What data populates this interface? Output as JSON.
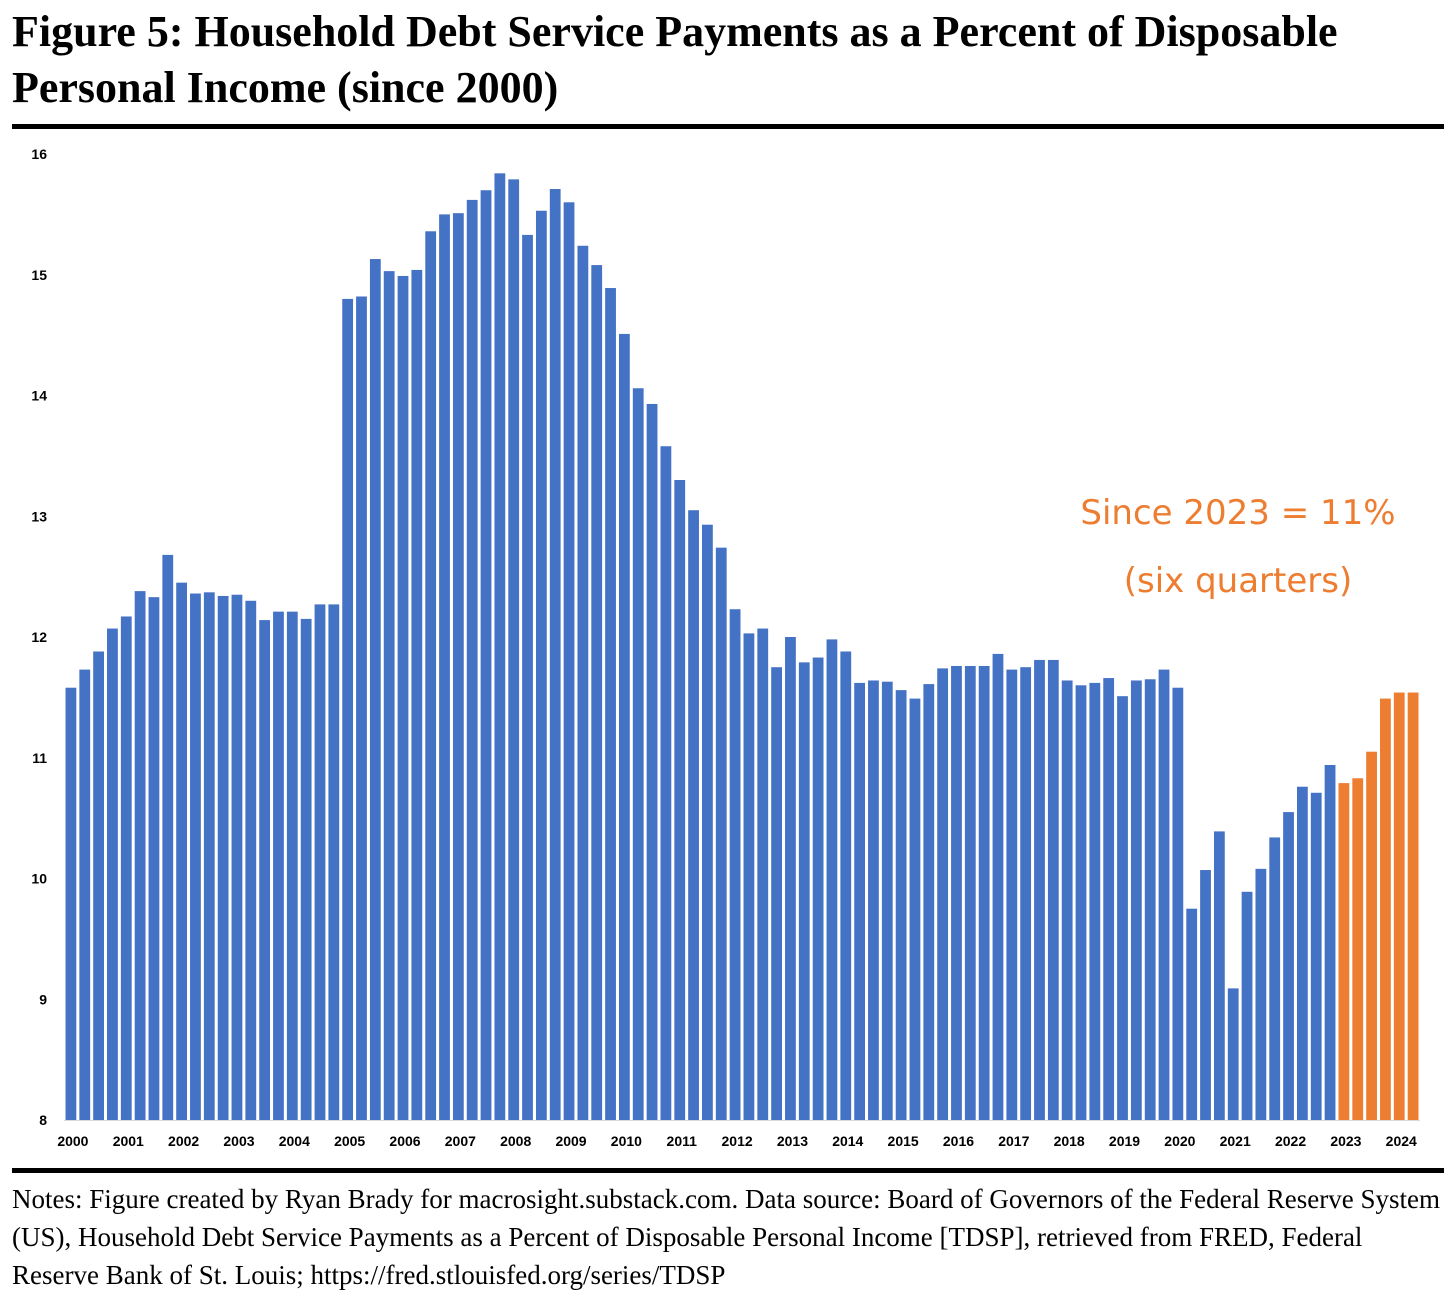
{
  "title": "Figure 5: Household Debt Service Payments as a Percent of Disposable Personal Income (since 2000)",
  "notes": "Notes: Figure created by Ryan Brady for macrosight.substack.com. Data source: Board of Governors of the Federal Reserve System (US), Household Debt Service Payments as a Percent of Disposable Personal Income [TDSP], retrieved from FRED, Federal Reserve Bank of St. Louis; https://fred.stlouisfed.org/series/TDSP",
  "annotation": {
    "line1": "Since 2023 = 11%",
    "line2": "(six quarters)"
  },
  "colors": {
    "base": "#4472c4",
    "highlight": "#ed7d31"
  },
  "chart_data": {
    "type": "bar",
    "title": "",
    "xlabel": "",
    "ylabel": "",
    "ylim": [
      8,
      16
    ],
    "yticks": [
      8,
      9,
      10,
      11,
      12,
      13,
      14,
      15,
      16
    ],
    "grid": false,
    "legend": "none",
    "year_labels": [
      "2000",
      "2001",
      "2002",
      "2003",
      "2004",
      "2005",
      "2006",
      "2007",
      "2008",
      "2009",
      "2010",
      "2011",
      "2012",
      "2013",
      "2014",
      "2015",
      "2016",
      "2017",
      "2018",
      "2019",
      "2020",
      "2021",
      "2022",
      "2023",
      "2024"
    ],
    "categories": [
      "2000Q1",
      "2000Q2",
      "2000Q3",
      "2000Q4",
      "2001Q1",
      "2001Q2",
      "2001Q3",
      "2001Q4",
      "2002Q1",
      "2002Q2",
      "2002Q3",
      "2002Q4",
      "2003Q1",
      "2003Q2",
      "2003Q3",
      "2003Q4",
      "2004Q1",
      "2004Q2",
      "2004Q3",
      "2004Q4",
      "2005Q1",
      "2005Q2",
      "2005Q3",
      "2005Q4",
      "2006Q1",
      "2006Q2",
      "2006Q3",
      "2006Q4",
      "2007Q1",
      "2007Q2",
      "2007Q3",
      "2007Q4",
      "2008Q1",
      "2008Q2",
      "2008Q3",
      "2008Q4",
      "2009Q1",
      "2009Q2",
      "2009Q3",
      "2009Q4",
      "2010Q1",
      "2010Q2",
      "2010Q3",
      "2010Q4",
      "2011Q1",
      "2011Q2",
      "2011Q3",
      "2011Q4",
      "2012Q1",
      "2012Q2",
      "2012Q3",
      "2012Q4",
      "2013Q1",
      "2013Q2",
      "2013Q3",
      "2013Q4",
      "2014Q1",
      "2014Q2",
      "2014Q3",
      "2014Q4",
      "2015Q1",
      "2015Q2",
      "2015Q3",
      "2015Q4",
      "2016Q1",
      "2016Q2",
      "2016Q3",
      "2016Q4",
      "2017Q1",
      "2017Q2",
      "2017Q3",
      "2017Q4",
      "2018Q1",
      "2018Q2",
      "2018Q3",
      "2018Q4",
      "2019Q1",
      "2019Q2",
      "2019Q3",
      "2019Q4",
      "2020Q1",
      "2020Q2",
      "2020Q3",
      "2020Q4",
      "2021Q1",
      "2021Q2",
      "2021Q3",
      "2021Q4",
      "2022Q1",
      "2022Q2",
      "2022Q3",
      "2022Q4",
      "2023Q1",
      "2023Q2",
      "2023Q3",
      "2023Q4",
      "2024Q1",
      "2024Q2"
    ],
    "values": [
      11.58,
      11.73,
      11.88,
      12.07,
      12.17,
      12.38,
      12.33,
      12.68,
      12.45,
      12.36,
      12.37,
      12.34,
      12.35,
      12.3,
      12.14,
      12.21,
      12.21,
      12.15,
      12.27,
      12.27,
      14.8,
      14.82,
      15.13,
      15.03,
      14.99,
      15.04,
      15.36,
      15.5,
      15.51,
      15.62,
      15.7,
      15.84,
      15.79,
      15.33,
      15.53,
      15.71,
      15.6,
      15.24,
      15.08,
      14.89,
      14.51,
      14.06,
      13.93,
      13.58,
      13.3,
      13.05,
      12.93,
      12.74,
      12.23,
      12.03,
      12.07,
      11.75,
      12.0,
      11.79,
      11.83,
      11.98,
      11.88,
      11.62,
      11.64,
      11.63,
      11.56,
      11.49,
      11.61,
      11.74,
      11.76,
      11.76,
      11.76,
      11.86,
      11.73,
      11.75,
      11.81,
      11.81,
      11.64,
      11.6,
      11.62,
      11.66,
      11.51,
      11.64,
      11.65,
      11.73,
      11.58,
      9.75,
      10.07,
      10.39,
      9.09,
      9.89,
      10.08,
      10.34,
      10.55,
      10.76,
      10.71,
      10.94,
      10.79,
      10.83,
      11.05,
      11.49,
      11.54,
      11.54
    ],
    "highlight_from": "2023Q1"
  }
}
